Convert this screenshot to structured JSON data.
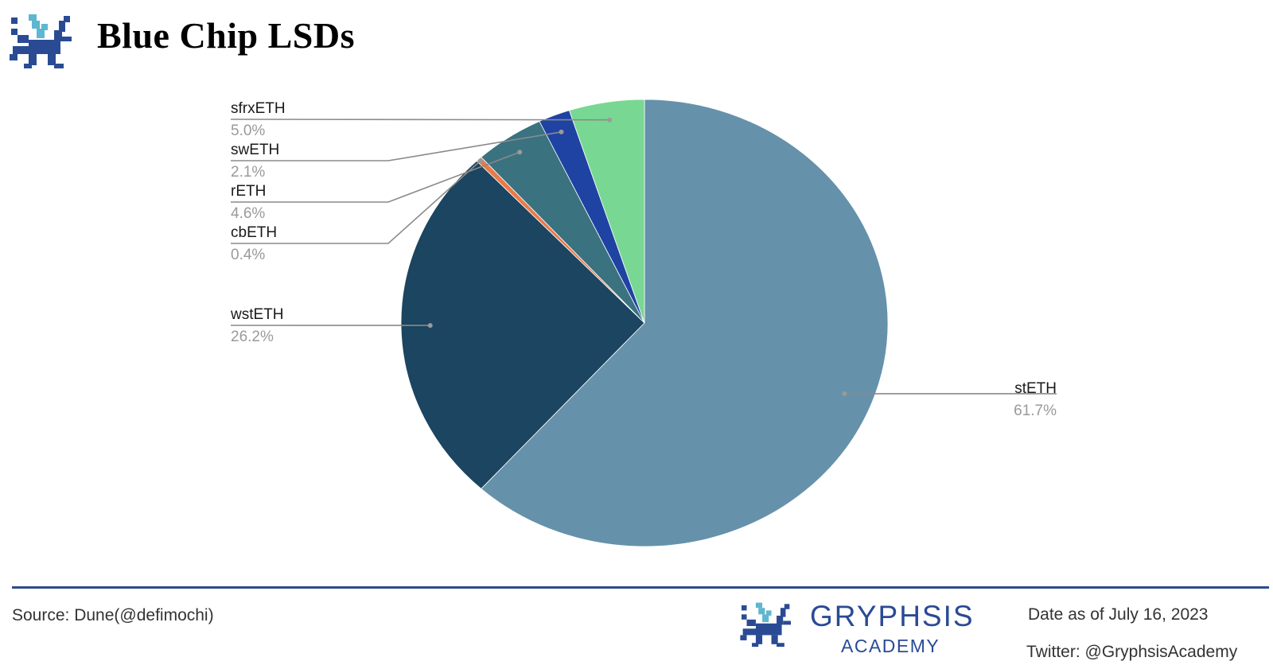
{
  "header": {
    "title": "Blue Chip LSDs",
    "logo_icon": "gryphon-logo-icon"
  },
  "chart_data": {
    "type": "pie",
    "title": "Blue Chip LSDs",
    "start_angle_deg": 0,
    "direction": "clockwise",
    "slices": [
      {
        "name": "stETH",
        "value": 61.7,
        "label": "61.7%",
        "color": "#6691aa"
      },
      {
        "name": "wstETH",
        "value": 26.2,
        "label": "26.2%",
        "color": "#1b4560"
      },
      {
        "name": "cbETH",
        "value": 0.4,
        "label": "0.4%",
        "color": "#e87a4a"
      },
      {
        "name": "rETH",
        "value": 4.6,
        "label": "4.6%",
        "color": "#3a7280"
      },
      {
        "name": "swETH",
        "value": 2.1,
        "label": "2.1%",
        "color": "#1f43a3"
      },
      {
        "name": "sfrxETH",
        "value": 5.0,
        "label": "5.0%",
        "color": "#78d893"
      }
    ]
  },
  "footer": {
    "source": "Source: Dune(@defimochi)",
    "brand_name": "GRYPHSIS",
    "brand_sub": "ACADEMY",
    "date": "Date as of July 16, 2023",
    "twitter": "Twitter: @GryphsisAcademy",
    "accent_color": "#2c4d8c"
  }
}
